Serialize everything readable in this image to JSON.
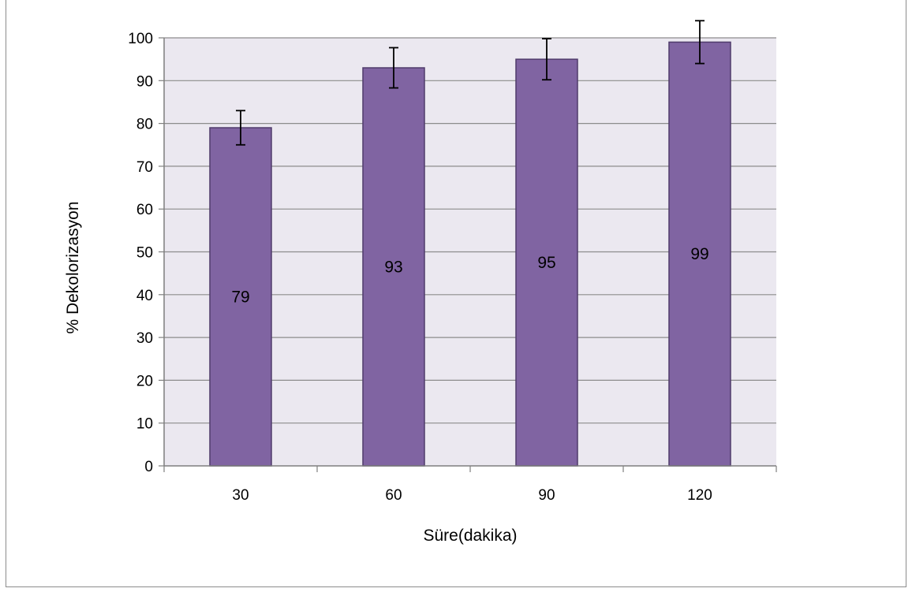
{
  "chart_data": {
    "type": "bar",
    "categories": [
      "30",
      "60",
      "90",
      "120"
    ],
    "values": [
      79,
      93,
      95,
      99
    ],
    "error": [
      4,
      4.7,
      4.8,
      5
    ],
    "data_labels": [
      "79",
      "93",
      "95",
      "99"
    ],
    "title": "",
    "xlabel": "Süre(dakika)",
    "ylabel": "% Dekolorizasyon",
    "ylim": [
      0,
      100
    ],
    "yticks": [
      "0",
      "10",
      "20",
      "30",
      "40",
      "50",
      "60",
      "70",
      "80",
      "90",
      "100"
    ],
    "grid": true,
    "legend": "none",
    "colors": {
      "bar_fill": "#8064a2",
      "bar_stroke": "#4f3b6b",
      "plot_bg": "#ebe8f0",
      "grid": "#8c8c8c",
      "axis": "#7f7f7f",
      "error_bar": "#000000"
    }
  }
}
